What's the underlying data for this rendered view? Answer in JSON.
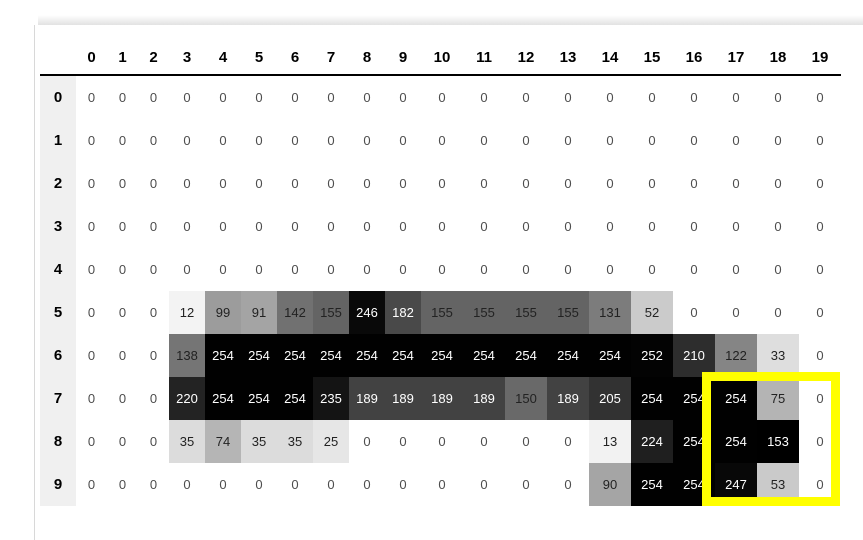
{
  "chart_data": {
    "type": "heatmap",
    "title": "",
    "x_labels": [
      "0",
      "1",
      "2",
      "3",
      "4",
      "5",
      "6",
      "7",
      "8",
      "9",
      "10",
      "11",
      "12",
      "13",
      "14",
      "15",
      "16",
      "17",
      "18",
      "19"
    ],
    "y_labels": [
      "0",
      "1",
      "2",
      "3",
      "4",
      "5",
      "6",
      "7",
      "8",
      "9"
    ],
    "values": [
      [
        0,
        0,
        0,
        0,
        0,
        0,
        0,
        0,
        0,
        0,
        0,
        0,
        0,
        0,
        0,
        0,
        0,
        0,
        0,
        0
      ],
      [
        0,
        0,
        0,
        0,
        0,
        0,
        0,
        0,
        0,
        0,
        0,
        0,
        0,
        0,
        0,
        0,
        0,
        0,
        0,
        0
      ],
      [
        0,
        0,
        0,
        0,
        0,
        0,
        0,
        0,
        0,
        0,
        0,
        0,
        0,
        0,
        0,
        0,
        0,
        0,
        0,
        0
      ],
      [
        0,
        0,
        0,
        0,
        0,
        0,
        0,
        0,
        0,
        0,
        0,
        0,
        0,
        0,
        0,
        0,
        0,
        0,
        0,
        0
      ],
      [
        0,
        0,
        0,
        0,
        0,
        0,
        0,
        0,
        0,
        0,
        0,
        0,
        0,
        0,
        0,
        0,
        0,
        0,
        0,
        0
      ],
      [
        0,
        0,
        0,
        12,
        99,
        91,
        142,
        155,
        246,
        182,
        155,
        155,
        155,
        155,
        131,
        52,
        0,
        0,
        0,
        0
      ],
      [
        0,
        0,
        0,
        138,
        254,
        254,
        254,
        254,
        254,
        254,
        254,
        254,
        254,
        254,
        254,
        252,
        210,
        122,
        33,
        0
      ],
      [
        0,
        0,
        0,
        220,
        254,
        254,
        254,
        235,
        189,
        189,
        189,
        189,
        150,
        189,
        205,
        254,
        254,
        254,
        75,
        0
      ],
      [
        0,
        0,
        0,
        35,
        74,
        35,
        35,
        25,
        0,
        0,
        0,
        0,
        0,
        0,
        13,
        224,
        254,
        254,
        153,
        0
      ],
      [
        0,
        0,
        0,
        0,
        0,
        0,
        0,
        0,
        0,
        0,
        0,
        0,
        0,
        0,
        90,
        254,
        254,
        247,
        53,
        0
      ]
    ],
    "color_rule": "cell background grayscale = 255 - value; white text on dark cells",
    "anomalous_cells": [
      {
        "row": 8,
        "col": 18,
        "background": "#000000"
      }
    ],
    "highlight": {
      "row_start": 7,
      "row_end": 9,
      "col_start": 17,
      "col_end": 19,
      "color": "#ffff00",
      "description": "thick yellow rectangle drawn around rows 7-9, columns 17-19"
    },
    "legend": "none",
    "grid": "off"
  },
  "colors": {
    "highlight": "#ffff00",
    "header_text": "#000000",
    "header_underline": "#000000",
    "index_header_bg": "#f0f0f0",
    "zero_text": "#4d4d4d",
    "value_text_dark": "#222222",
    "value_text_light": "#ffffff",
    "panel_edge": "#d8d8d8"
  }
}
